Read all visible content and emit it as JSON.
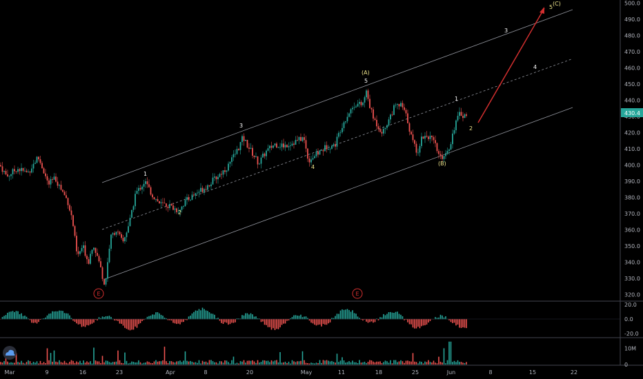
{
  "chart_data": {
    "type": "candlestick",
    "price_axis": {
      "ticks": [
        "500.0",
        "490.0",
        "480.0",
        "470.0",
        "460.0",
        "450.0",
        "440.0",
        "430.0",
        "420.0",
        "410.0",
        "400.0",
        "390.0",
        "380.0",
        "370.0",
        "360.0",
        "350.0",
        "340.0",
        "330.0",
        "320.0"
      ],
      "range": [
        316,
        502
      ],
      "last_price": "430.4"
    },
    "time_axis": {
      "labels": [
        "Mar",
        "9",
        "16",
        "23",
        "Apr",
        "8",
        "20",
        "May",
        "11",
        "18",
        "25",
        "Jun",
        "8",
        "15",
        "22"
      ]
    },
    "oscillator": {
      "ticks": [
        "20.0",
        "0.0",
        "-20.0"
      ],
      "range": [
        -25,
        24
      ]
    },
    "volume": {
      "ticks": [
        "10M",
        "0"
      ],
      "range": [
        0,
        16
      ]
    },
    "wave_labels": {
      "minor": [
        "1",
        "2",
        "3",
        "4",
        "5",
        "1",
        "2",
        "3",
        "4"
      ],
      "major": [
        "(A)",
        "(B)",
        "5",
        "(C)"
      ],
      "cycle": [
        "E",
        "E"
      ]
    },
    "colors": {
      "up": "#26a69a",
      "down": "#ef5350",
      "channel": "#9598a1",
      "projection": "#d32f2f",
      "last_price_bg": "#26a69a"
    }
  }
}
